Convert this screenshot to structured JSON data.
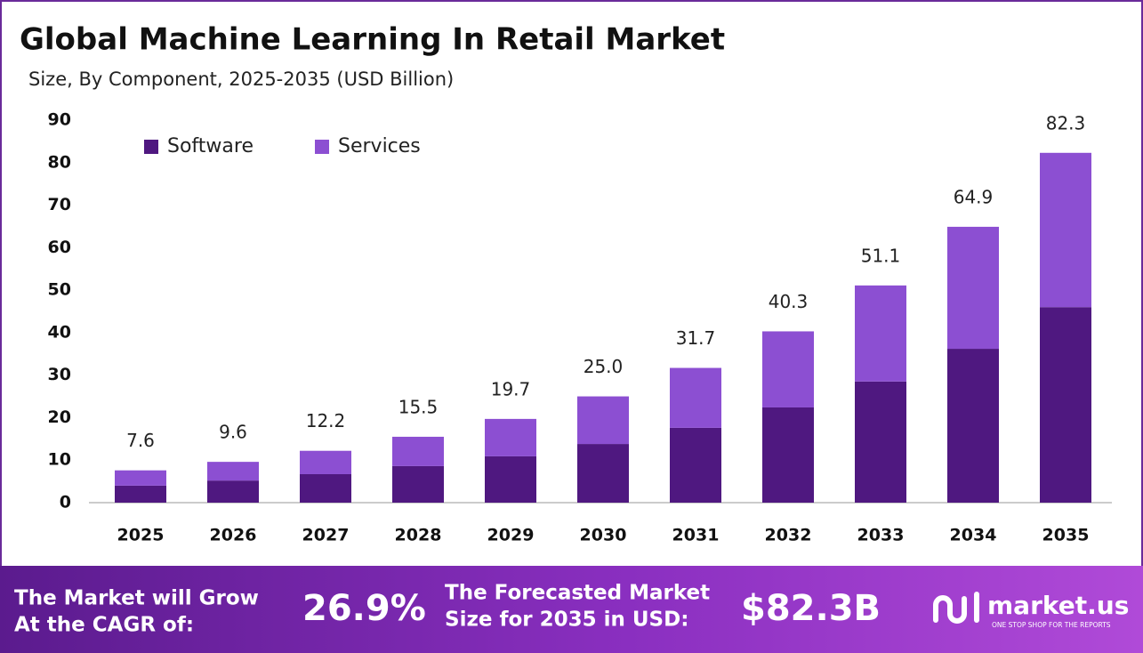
{
  "chart_data": {
    "type": "stacked-bar",
    "title": "Global Machine Learning In Retail Market",
    "subtitle": "Size, By Component, 2025-2035 (USD Billion)",
    "categories": [
      "2025",
      "2026",
      "2027",
      "2028",
      "2029",
      "2030",
      "2031",
      "2032",
      "2033",
      "2034",
      "2035"
    ],
    "series": [
      {
        "name": "Software",
        "color": "#4f1880",
        "values": [
          4.0,
          5.2,
          6.7,
          8.6,
          10.9,
          13.8,
          17.6,
          22.4,
          28.5,
          36.2,
          46.0
        ]
      },
      {
        "name": "Services",
        "color": "#8c4fd2",
        "values": [
          3.6,
          4.4,
          5.5,
          6.9,
          8.8,
          11.2,
          14.1,
          17.9,
          22.6,
          28.7,
          36.3
        ]
      }
    ],
    "totals": {
      "values": [
        7.6,
        9.6,
        12.2,
        15.5,
        19.7,
        25.0,
        31.7,
        40.3,
        51.1,
        64.9,
        82.3
      ],
      "value_labels": [
        "7.6",
        "9.6",
        "12.2",
        "15.5",
        "19.7",
        "25.0",
        "31.7",
        "40.3",
        "51.1",
        "64.9",
        "82.3"
      ]
    },
    "ylim": [
      0,
      90
    ],
    "yticks": [
      0,
      10,
      20,
      30,
      40,
      50,
      60,
      70,
      80,
      90
    ],
    "grid": false,
    "legend": "top-left"
  },
  "footer": {
    "cagr_text": [
      "The Market will Grow",
      "At the CAGR of:"
    ],
    "cagr_value": "26.9%",
    "forecast_text": [
      "The Forecasted Market",
      "Size for 2035 in USD:"
    ],
    "forecast_value": "$82.3B",
    "brand": "market.us",
    "tagline": "ONE STOP SHOP FOR THE REPORTS"
  }
}
